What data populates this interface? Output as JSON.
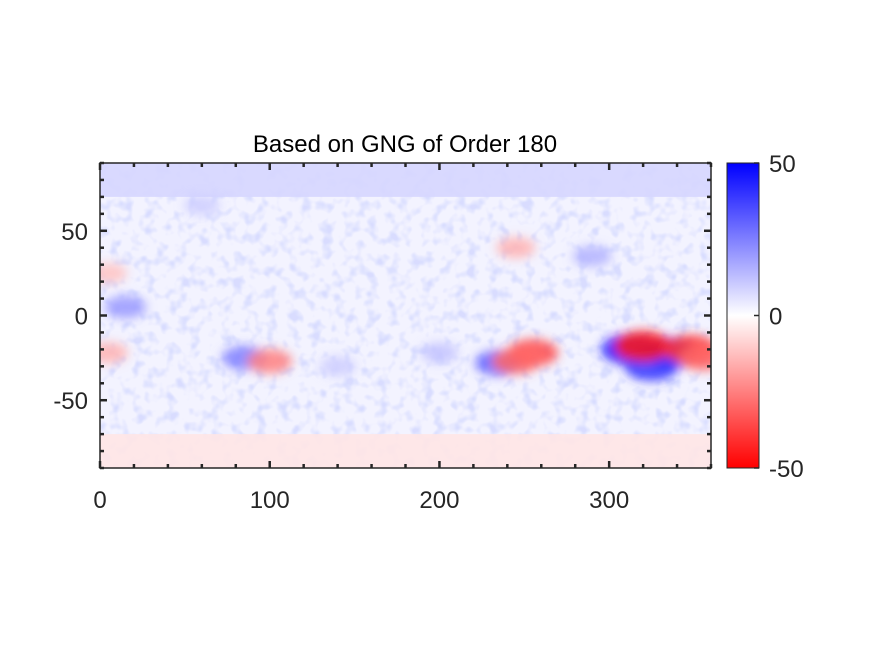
{
  "chart_data": {
    "type": "heatmap",
    "title": "Based on GNG of Order 180",
    "xlabel": "",
    "ylabel": "",
    "xlim": [
      0,
      360
    ],
    "ylim": [
      -90,
      90
    ],
    "x_ticks": [
      0,
      100,
      200,
      300
    ],
    "y_ticks": [
      50,
      0,
      -50
    ],
    "x_tick_labels": [
      "0",
      "100",
      "200",
      "300"
    ],
    "y_tick_labels": [
      "50",
      "0",
      "-50"
    ],
    "colorbar": {
      "limits": [
        -50,
        50
      ],
      "ticks": [
        50,
        0,
        -50
      ],
      "tick_labels": [
        "50",
        "0",
        "-50"
      ],
      "colormap": "red-white-blue",
      "colors": {
        "negative": "#ff0000",
        "zero": "#ffffff",
        "positive": "#0000ff"
      }
    },
    "background_bands": [
      {
        "lat_range": [
          70,
          90
        ],
        "value": 8
      },
      {
        "lat_range": [
          -90,
          -70
        ],
        "value": -5
      }
    ],
    "features": [
      {
        "lon": 85,
        "lat": -25,
        "value": 25,
        "sign": "positive"
      },
      {
        "lon": 100,
        "lat": -27,
        "value": -25,
        "sign": "negative"
      },
      {
        "lon": 235,
        "lat": -28,
        "value": 30,
        "sign": "positive"
      },
      {
        "lon": 255,
        "lat": -22,
        "value": -35,
        "sign": "negative"
      },
      {
        "lon": 245,
        "lat": -27,
        "value": -30,
        "sign": "negative"
      },
      {
        "lon": 312,
        "lat": -20,
        "value": 45,
        "sign": "positive"
      },
      {
        "lon": 335,
        "lat": -22,
        "value": 45,
        "sign": "positive"
      },
      {
        "lon": 325,
        "lat": -30,
        "value": 40,
        "sign": "positive"
      },
      {
        "lon": 320,
        "lat": -18,
        "value": -45,
        "sign": "negative"
      },
      {
        "lon": 348,
        "lat": -20,
        "value": -40,
        "sign": "negative"
      },
      {
        "lon": 355,
        "lat": -25,
        "value": -30,
        "sign": "negative"
      },
      {
        "lon": 245,
        "lat": 40,
        "value": -15,
        "sign": "negative"
      },
      {
        "lon": 290,
        "lat": 35,
        "value": 15,
        "sign": "positive"
      },
      {
        "lon": 200,
        "lat": -22,
        "value": 12,
        "sign": "positive"
      },
      {
        "lon": 5,
        "lat": 25,
        "value": -12,
        "sign": "negative"
      },
      {
        "lon": 15,
        "lat": 5,
        "value": 20,
        "sign": "positive"
      },
      {
        "lon": 5,
        "lat": -22,
        "value": -15,
        "sign": "negative"
      },
      {
        "lon": 140,
        "lat": -30,
        "value": 10,
        "sign": "positive"
      },
      {
        "lon": 60,
        "lat": 65,
        "value": 10,
        "sign": "positive"
      }
    ],
    "grid": false,
    "legend": "colorbar-right"
  }
}
